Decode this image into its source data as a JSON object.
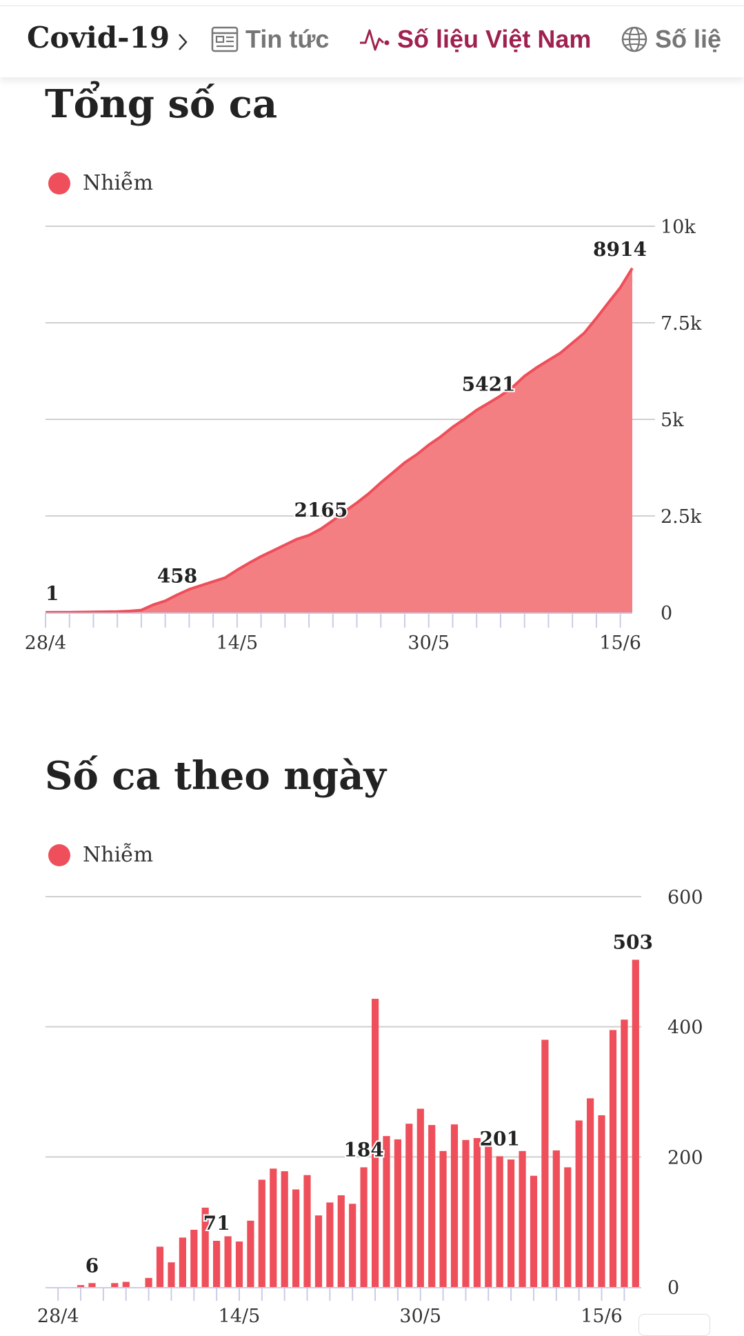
{
  "header": {
    "breadcrumb_root": "Covid-19",
    "tabs": [
      {
        "label": "Tin tức",
        "icon": "news-icon",
        "active": false
      },
      {
        "label": "Số liệu Việt Nam",
        "icon": "pulse-icon",
        "active": true
      },
      {
        "label": "Số liệ",
        "icon": "globe-icon",
        "active": false
      }
    ]
  },
  "colors": {
    "accent": "#9f224e",
    "series": "#ee4f5a",
    "area_fill": "#f47f83",
    "grid": "#cfcfcf"
  },
  "sections": [
    {
      "title": "Tổng số ca",
      "legend": "Nhiễm"
    },
    {
      "title": "Số ca theo ngày",
      "legend": "Nhiễm"
    }
  ],
  "chart_data": [
    {
      "type": "area",
      "title": "Tổng số ca",
      "legend": [
        "Nhiễm"
      ],
      "x_ticks": [
        "28/4",
        "14/5",
        "30/5",
        "15/6"
      ],
      "y_ticks": [
        "0",
        "2.5k",
        "5k",
        "7.5k",
        "10k"
      ],
      "ylim": [
        0,
        10000
      ],
      "series": [
        {
          "name": "Nhiễm",
          "values": [
            1,
            3,
            6,
            9,
            12,
            18,
            24,
            35,
            60,
            200,
            300,
            458,
            600,
            700,
            800,
            900,
            1100,
            1280,
            1450,
            1600,
            1750,
            1900,
            2000,
            2165,
            2380,
            2620,
            2840,
            3080,
            3360,
            3620,
            3880,
            4090,
            4340,
            4550,
            4800,
            5010,
            5240,
            5421,
            5610,
            5830,
            6120,
            6340,
            6530,
            6720,
            6980,
            7240,
            7620,
            8020,
            8411,
            8914
          ]
        }
      ],
      "annotations": [
        {
          "x_index": 0,
          "label": "1"
        },
        {
          "x_index": 11,
          "label": "458"
        },
        {
          "x_index": 23,
          "label": "2165"
        },
        {
          "x_index": 37,
          "label": "5421"
        },
        {
          "x_index": 49,
          "label": "8914"
        }
      ],
      "grid": true,
      "legend_position": "top-left"
    },
    {
      "type": "bar",
      "title": "Số ca theo ngày",
      "legend": [
        "Nhiễm"
      ],
      "x_ticks": [
        "28/4",
        "14/5",
        "30/5",
        "15/6"
      ],
      "y_ticks": [
        "0",
        "200",
        "400",
        "600"
      ],
      "ylim": [
        0,
        600
      ],
      "series": [
        {
          "name": "Nhiễm",
          "values": [
            0,
            0,
            3,
            6,
            0,
            6,
            8,
            0,
            14,
            62,
            38,
            76,
            88,
            122,
            71,
            78,
            70,
            102,
            165,
            182,
            178,
            150,
            172,
            110,
            130,
            141,
            128,
            184,
            443,
            232,
            227,
            251,
            274,
            249,
            209,
            250,
            226,
            229,
            218,
            201,
            196,
            209,
            171,
            380,
            210,
            184,
            256,
            290,
            264,
            395,
            411,
            503
          ]
        }
      ],
      "annotations": [
        {
          "x_index": 3,
          "label": "6"
        },
        {
          "x_index": 14,
          "label": "71"
        },
        {
          "x_index": 27,
          "label": "184"
        },
        {
          "x_index": 39,
          "label": "201"
        },
        {
          "x_index": 51,
          "label": "503"
        }
      ],
      "grid": true,
      "legend_position": "top-left"
    }
  ]
}
